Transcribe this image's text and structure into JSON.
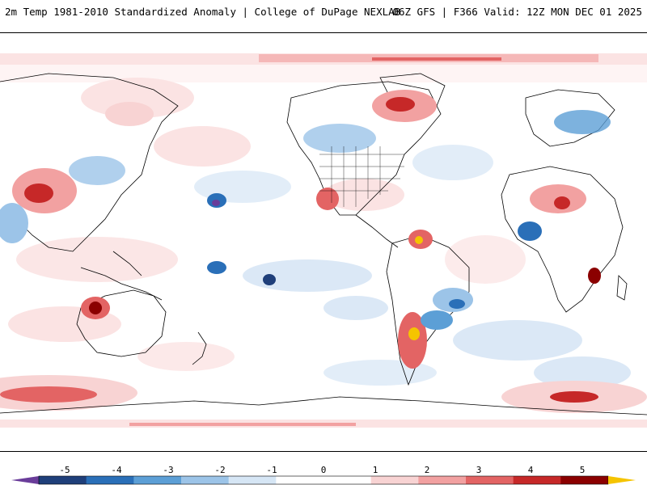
{
  "header": {
    "title": "2m Temp 1981-2010 Standardized Anomaly | College of DuPage NEXLAB",
    "run_info": "06Z GFS | F366 Valid: 12Z MON DEC 01 2025"
  },
  "colorbar": {
    "ticks": [
      "-5",
      "-4",
      "-3",
      "-2",
      "-1",
      "0",
      "1",
      "2",
      "3",
      "4",
      "5"
    ],
    "colors": [
      "#6a3d9a",
      "#1f3f7a",
      "#2a6fb8",
      "#5c9fd6",
      "#9cc4e8",
      "#d6e6f5",
      "#ffffff",
      "#ffffff",
      "#f8d3d3",
      "#f2a1a1",
      "#e36464",
      "#c62828",
      "#8b0000",
      "#f5c400"
    ]
  },
  "map": {
    "land_color": "#ffffff",
    "border_color": "#000000"
  }
}
